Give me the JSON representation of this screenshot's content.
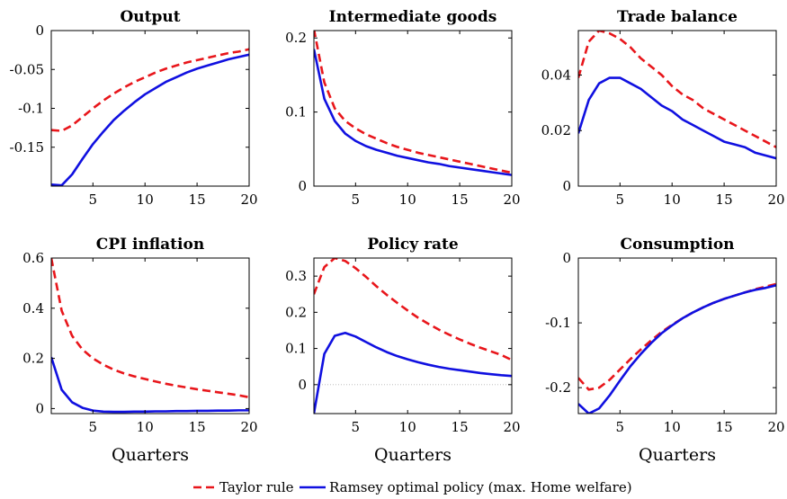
{
  "colors": {
    "taylor": "#e8161b",
    "ramsey": "#1010e0",
    "zero_line": "#b4b4b4"
  },
  "legend": {
    "items": [
      "Taylor rule",
      "Ramsey optimal policy (max. Home welfare)"
    ]
  },
  "chart_data": [
    {
      "type": "line",
      "title": "Output",
      "xlabel": "",
      "ylabel": "",
      "xlim": [
        1,
        20
      ],
      "ylim": [
        -0.2,
        0
      ],
      "yticks": [
        0,
        -0.05,
        -0.1,
        -0.15
      ],
      "ytick_labels": [
        "0",
        "-0.05",
        "-0.1",
        "-0.15"
      ],
      "xticks": [
        5,
        10,
        15,
        20
      ],
      "xtick_labels": [
        "5",
        "10",
        "15",
        "20"
      ],
      "zero_line": false,
      "series": [
        {
          "name": "Taylor rule",
          "style": "dashed",
          "x": [
            1,
            2,
            3,
            4,
            5,
            6,
            7,
            8,
            9,
            10,
            11,
            12,
            13,
            14,
            15,
            16,
            17,
            18,
            19,
            20
          ],
          "values": [
            -0.128,
            -0.129,
            -0.122,
            -0.111,
            -0.1,
            -0.09,
            -0.081,
            -0.073,
            -0.066,
            -0.06,
            -0.054,
            -0.049,
            -0.045,
            -0.041,
            -0.038,
            -0.035,
            -0.032,
            -0.029,
            -0.027,
            -0.024
          ]
        },
        {
          "name": "Ramsey optimal policy (max. Home welfare)",
          "style": "solid",
          "x": [
            1,
            2,
            3,
            4,
            5,
            6,
            7,
            8,
            9,
            10,
            11,
            12,
            13,
            14,
            15,
            16,
            17,
            18,
            19,
            20
          ],
          "values": [
            -0.198,
            -0.199,
            -0.185,
            -0.165,
            -0.146,
            -0.13,
            -0.115,
            -0.103,
            -0.092,
            -0.082,
            -0.074,
            -0.066,
            -0.06,
            -0.054,
            -0.049,
            -0.045,
            -0.041,
            -0.037,
            -0.034,
            -0.031
          ]
        }
      ]
    },
    {
      "type": "line",
      "title": "Intermediate goods",
      "xlabel": "",
      "ylabel": "",
      "xlim": [
        1,
        20
      ],
      "ylim": [
        0,
        0.21
      ],
      "yticks": [
        0,
        0.1,
        0.2
      ],
      "ytick_labels": [
        "0",
        "0.1",
        "0.2"
      ],
      "xticks": [
        5,
        10,
        15,
        20
      ],
      "xtick_labels": [
        "5",
        "10",
        "15",
        "20"
      ],
      "zero_line": false,
      "series": [
        {
          "name": "Taylor rule",
          "style": "dashed",
          "x": [
            1,
            2,
            3,
            4,
            5,
            6,
            7,
            8,
            9,
            10,
            11,
            12,
            13,
            14,
            15,
            16,
            17,
            18,
            19,
            20
          ],
          "values": [
            0.212,
            0.14,
            0.105,
            0.088,
            0.078,
            0.07,
            0.064,
            0.058,
            0.053,
            0.049,
            0.045,
            0.042,
            0.039,
            0.036,
            0.033,
            0.03,
            0.027,
            0.024,
            0.021,
            0.018
          ]
        },
        {
          "name": "Ramsey optimal policy (max. Home welfare)",
          "style": "solid",
          "x": [
            1,
            2,
            3,
            4,
            5,
            6,
            7,
            8,
            9,
            10,
            11,
            12,
            13,
            14,
            15,
            16,
            17,
            18,
            19,
            20
          ],
          "values": [
            0.185,
            0.118,
            0.088,
            0.071,
            0.061,
            0.054,
            0.049,
            0.045,
            0.041,
            0.038,
            0.035,
            0.032,
            0.03,
            0.027,
            0.025,
            0.023,
            0.021,
            0.019,
            0.017,
            0.015
          ]
        }
      ]
    },
    {
      "type": "line",
      "title": "Trade balance",
      "xlabel": "",
      "ylabel": "",
      "xlim": [
        1,
        20
      ],
      "ylim": [
        0,
        0.056
      ],
      "yticks": [
        0,
        0.02,
        0.04
      ],
      "ytick_labels": [
        "0",
        "0.02",
        "0.04"
      ],
      "xticks": [
        5,
        10,
        15,
        20
      ],
      "xtick_labels": [
        "5",
        "10",
        "15",
        "20"
      ],
      "zero_line": false,
      "series": [
        {
          "name": "Taylor rule",
          "style": "dashed",
          "x": [
            1,
            2,
            3,
            4,
            5,
            6,
            7,
            8,
            9,
            10,
            11,
            12,
            13,
            14,
            15,
            16,
            17,
            18,
            19,
            20
          ],
          "values": [
            0.039,
            0.052,
            0.056,
            0.055,
            0.053,
            0.05,
            0.046,
            0.043,
            0.04,
            0.036,
            0.033,
            0.031,
            0.028,
            0.026,
            0.024,
            0.022,
            0.02,
            0.018,
            0.016,
            0.014
          ]
        },
        {
          "name": "Ramsey optimal policy (max. Home welfare)",
          "style": "solid",
          "x": [
            1,
            2,
            3,
            4,
            5,
            6,
            7,
            8,
            9,
            10,
            11,
            12,
            13,
            14,
            15,
            16,
            17,
            18,
            19,
            20
          ],
          "values": [
            0.019,
            0.031,
            0.037,
            0.039,
            0.039,
            0.037,
            0.035,
            0.032,
            0.029,
            0.027,
            0.024,
            0.022,
            0.02,
            0.018,
            0.016,
            0.015,
            0.014,
            0.012,
            0.011,
            0.01
          ]
        }
      ]
    },
    {
      "type": "line",
      "title": "CPI inflation",
      "xlabel": "Quarters",
      "ylabel": "",
      "xlim": [
        1,
        20
      ],
      "ylim": [
        -0.02,
        0.6
      ],
      "yticks": [
        0.6,
        0.4,
        0.2,
        0
      ],
      "ytick_labels": [
        "0.6",
        "0.4",
        "0.2",
        "0"
      ],
      "xticks": [
        5,
        10,
        15,
        20
      ],
      "xtick_labels": [
        "5",
        "10",
        "15",
        "20"
      ],
      "zero_line": false,
      "series": [
        {
          "name": "Taylor rule",
          "style": "dashed",
          "x": [
            1,
            2,
            3,
            4,
            5,
            6,
            7,
            8,
            9,
            10,
            11,
            12,
            13,
            14,
            15,
            16,
            17,
            18,
            19,
            20
          ],
          "values": [
            0.6,
            0.39,
            0.29,
            0.235,
            0.2,
            0.175,
            0.155,
            0.14,
            0.128,
            0.118,
            0.108,
            0.099,
            0.091,
            0.084,
            0.077,
            0.071,
            0.065,
            0.059,
            0.053,
            0.045
          ]
        },
        {
          "name": "Ramsey optimal policy (max. Home welfare)",
          "style": "solid",
          "x": [
            1,
            2,
            3,
            4,
            5,
            6,
            7,
            8,
            9,
            10,
            11,
            12,
            13,
            14,
            15,
            16,
            17,
            18,
            19,
            20
          ],
          "values": [
            0.205,
            0.075,
            0.025,
            0.003,
            -0.008,
            -0.012,
            -0.013,
            -0.013,
            -0.012,
            -0.012,
            -0.011,
            -0.011,
            -0.01,
            -0.01,
            -0.009,
            -0.009,
            -0.008,
            -0.008,
            -0.007,
            -0.007
          ]
        }
      ]
    },
    {
      "type": "line",
      "title": "Policy rate",
      "xlabel": "Quarters",
      "ylabel": "",
      "xlim": [
        1,
        20
      ],
      "ylim": [
        -0.08,
        0.35
      ],
      "yticks": [
        0.3,
        0.2,
        0.1,
        0
      ],
      "ytick_labels": [
        "0.3",
        "0.2",
        "0.1",
        "0"
      ],
      "xticks": [
        5,
        10,
        15,
        20
      ],
      "xtick_labels": [
        "5",
        "10",
        "15",
        "20"
      ],
      "zero_line": true,
      "series": [
        {
          "name": "Taylor rule",
          "style": "dashed",
          "x": [
            1,
            2,
            3,
            4,
            5,
            6,
            7,
            8,
            9,
            10,
            11,
            12,
            13,
            14,
            15,
            16,
            17,
            18,
            19,
            20
          ],
          "values": [
            0.25,
            0.325,
            0.35,
            0.342,
            0.322,
            0.298,
            0.272,
            0.248,
            0.226,
            0.205,
            0.185,
            0.168,
            0.152,
            0.138,
            0.125,
            0.113,
            0.102,
            0.092,
            0.082,
            0.068
          ]
        },
        {
          "name": "Ramsey optimal policy (max. Home welfare)",
          "style": "solid",
          "x": [
            1,
            2,
            3,
            4,
            5,
            6,
            7,
            8,
            9,
            10,
            11,
            12,
            13,
            14,
            15,
            16,
            17,
            18,
            19,
            20
          ],
          "values": [
            -0.08,
            0.085,
            0.135,
            0.143,
            0.133,
            0.118,
            0.103,
            0.09,
            0.079,
            0.07,
            0.062,
            0.055,
            0.049,
            0.044,
            0.04,
            0.036,
            0.032,
            0.029,
            0.026,
            0.024
          ]
        }
      ]
    },
    {
      "type": "line",
      "title": "Consumption",
      "xlabel": "Quarters",
      "ylabel": "",
      "xlim": [
        1,
        20
      ],
      "ylim": [
        -0.24,
        0
      ],
      "yticks": [
        0,
        -0.1,
        -0.2
      ],
      "ytick_labels": [
        "0",
        "-0.1",
        "-0.2"
      ],
      "xticks": [
        5,
        10,
        15,
        20
      ],
      "xtick_labels": [
        "5",
        "10",
        "15",
        "20"
      ],
      "zero_line": false,
      "series": [
        {
          "name": "Taylor rule",
          "style": "dashed",
          "x": [
            1,
            2,
            3,
            4,
            5,
            6,
            7,
            8,
            9,
            10,
            11,
            12,
            13,
            14,
            15,
            16,
            17,
            18,
            19,
            20
          ],
          "values": [
            -0.185,
            -0.203,
            -0.2,
            -0.188,
            -0.172,
            -0.156,
            -0.141,
            -0.127,
            -0.114,
            -0.103,
            -0.093,
            -0.084,
            -0.076,
            -0.069,
            -0.063,
            -0.058,
            -0.053,
            -0.048,
            -0.044,
            -0.04
          ]
        },
        {
          "name": "Ramsey optimal policy (max. Home welfare)",
          "style": "solid",
          "x": [
            1,
            2,
            3,
            4,
            5,
            6,
            7,
            8,
            9,
            10,
            11,
            12,
            13,
            14,
            15,
            16,
            17,
            18,
            19,
            20
          ],
          "values": [
            -0.225,
            -0.24,
            -0.232,
            -0.212,
            -0.189,
            -0.167,
            -0.148,
            -0.131,
            -0.116,
            -0.104,
            -0.093,
            -0.084,
            -0.076,
            -0.069,
            -0.063,
            -0.058,
            -0.053,
            -0.049,
            -0.046,
            -0.042
          ]
        }
      ]
    }
  ]
}
